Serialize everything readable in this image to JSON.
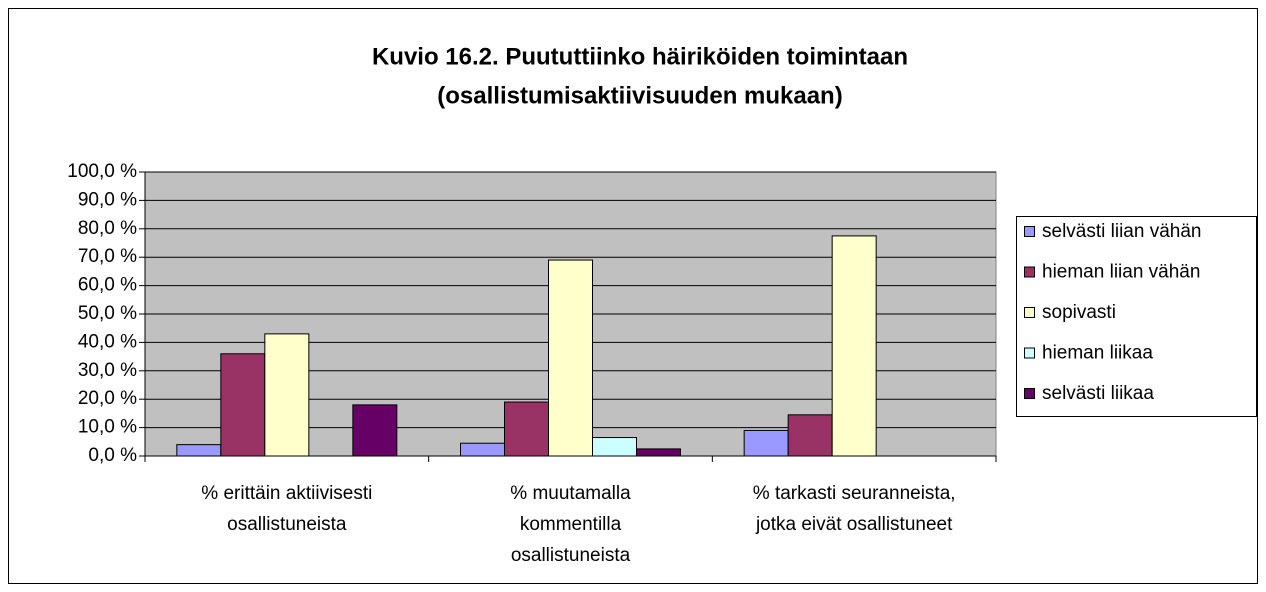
{
  "chart_data": {
    "type": "bar",
    "title": [
      "Kuvio 16.2. Puututtiinko häiriköiden toimintaan",
      "(osallistumisaktiivisuuden mukaan)"
    ],
    "categories": [
      [
        "% erittäin aktiivisesti",
        "osallistuneista"
      ],
      [
        "% muutamalla",
        "kommentilla",
        "osallistuneista"
      ],
      [
        "% tarkasti seuranneista,",
        "jotka eivät osallistuneet"
      ]
    ],
    "series": [
      {
        "name": "selvästi liian vähän",
        "color": "#9999ff",
        "values": [
          4,
          4.5,
          9
        ]
      },
      {
        "name": "hieman liian vähän",
        "color": "#993366",
        "values": [
          36,
          19,
          14.5
        ]
      },
      {
        "name": "sopivasti",
        "color": "#ffffcc",
        "values": [
          43,
          69,
          77.5
        ]
      },
      {
        "name": "hieman liikaa",
        "color": "#ccffff",
        "values": [
          0,
          6.5,
          0
        ]
      },
      {
        "name": "selvästi liikaa",
        "color": "#660066",
        "values": [
          18,
          2.5,
          0
        ]
      }
    ],
    "ylim": [
      0,
      100
    ],
    "yticks": [
      {
        "value": 0,
        "label": "0,0 %"
      },
      {
        "value": 10,
        "label": "10,0 %"
      },
      {
        "value": 20,
        "label": "20,0 %"
      },
      {
        "value": 30,
        "label": "30,0 %"
      },
      {
        "value": 40,
        "label": "40,0 %"
      },
      {
        "value": 50,
        "label": "50,0 %"
      },
      {
        "value": 60,
        "label": "60,0 %"
      },
      {
        "value": 70,
        "label": "70,0 %"
      },
      {
        "value": 80,
        "label": "80,0 %"
      },
      {
        "value": 90,
        "label": "90,0 %"
      },
      {
        "value": 100,
        "label": "100,0 %"
      }
    ],
    "grid": true,
    "legend": "right",
    "plot_background": "#c0c0c0"
  }
}
